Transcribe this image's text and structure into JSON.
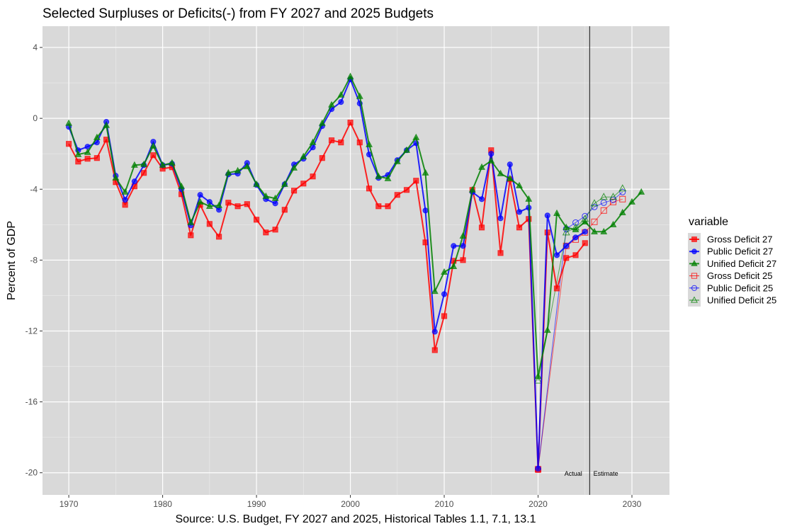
{
  "chart_data": {
    "type": "line",
    "title": "Selected Surpluses or Deficits(-) from FY 2027 and 2025 Budgets",
    "xlabel": "Source: U.S. Budget, FY 2027 and 2025, Historical Tables 1.1, 7.1, 13.1",
    "ylabel": "Percent of GDP",
    "xlim": [
      1967.2,
      2034
    ],
    "ylim": [
      -21.25,
      5.2
    ],
    "x_ticks": [
      1970,
      1980,
      1990,
      2000,
      2010,
      2020,
      2030
    ],
    "x_tick_labels": [
      "1970",
      "1980",
      "1990",
      "2000",
      "2010",
      "2020",
      "2030"
    ],
    "y_ticks": [
      4,
      0,
      -4,
      -8,
      -12,
      -16,
      -20
    ],
    "y_tick_labels": [
      "4",
      "0",
      "-4",
      "-8",
      "-12",
      "-16",
      "-20"
    ],
    "grid": true,
    "panel_background": "#d9d9d9",
    "legend": {
      "title": "variable",
      "position": "right"
    },
    "vline": {
      "x": 2025.5,
      "color": "#333333"
    },
    "annotations": [
      {
        "text": "Actual",
        "x": 2024.7,
        "y": -20.05,
        "anchor": "end"
      },
      {
        "text": "Estimate",
        "x": 2025.9,
        "y": -20.05,
        "anchor": "start"
      }
    ],
    "series": [
      {
        "name": "Gross Deficit 27",
        "color": "#ff0000",
        "shape": "square",
        "filled": true,
        "x": [
          1970,
          1971,
          1972,
          1973,
          1974,
          1975,
          1976,
          1977,
          1978,
          1979,
          1980,
          1981,
          1982,
          1983,
          1984,
          1985,
          1986,
          1987,
          1988,
          1989,
          1990,
          1991,
          1992,
          1993,
          1994,
          1995,
          1996,
          1997,
          1998,
          1999,
          2000,
          2001,
          2002,
          2003,
          2004,
          2005,
          2006,
          2007,
          2008,
          2009,
          2010,
          2011,
          2012,
          2013,
          2014,
          2015,
          2016,
          2017,
          2018,
          2019,
          2020,
          2021,
          2022,
          2023,
          2024,
          2025
        ],
        "values": [
          -1.44,
          -2.44,
          -2.28,
          -2.24,
          -1.2,
          -3.6,
          -4.88,
          -3.84,
          -3.08,
          -2.08,
          -2.84,
          -2.76,
          -4.28,
          -6.6,
          -4.88,
          -5.96,
          -6.68,
          -4.76,
          -4.96,
          -4.84,
          -5.72,
          -6.44,
          -6.28,
          -5.16,
          -4.08,
          -3.68,
          -3.28,
          -2.24,
          -1.24,
          -1.36,
          -0.24,
          -1.36,
          -3.96,
          -4.96,
          -4.96,
          -4.32,
          -4.04,
          -3.52,
          -7.0,
          -13.08,
          -11.16,
          -8.04,
          -8.0,
          -4.04,
          -6.16,
          -1.8,
          -7.6,
          -3.44,
          -6.16,
          -5.68,
          -19.84,
          -6.44,
          -9.6,
          -7.88,
          -7.72,
          -7.04
        ]
      },
      {
        "name": "Public Deficit 27",
        "color": "#0000ff",
        "shape": "circle",
        "filled": true,
        "x": [
          1970,
          1971,
          1972,
          1973,
          1974,
          1975,
          1976,
          1977,
          1978,
          1979,
          1980,
          1981,
          1982,
          1983,
          1984,
          1985,
          1986,
          1987,
          1988,
          1989,
          1990,
          1991,
          1992,
          1993,
          1994,
          1995,
          1996,
          1997,
          1998,
          1999,
          2000,
          2001,
          2002,
          2003,
          2004,
          2005,
          2006,
          2007,
          2008,
          2009,
          2010,
          2011,
          2012,
          2013,
          2014,
          2015,
          2016,
          2017,
          2018,
          2019,
          2020,
          2021,
          2022,
          2023,
          2024,
          2025
        ],
        "values": [
          -0.48,
          -1.8,
          -1.6,
          -1.36,
          -0.2,
          -3.24,
          -4.6,
          -3.56,
          -2.64,
          -1.32,
          -2.64,
          -2.56,
          -4.0,
          -6.04,
          -4.32,
          -4.72,
          -5.16,
          -3.16,
          -3.12,
          -2.52,
          -3.76,
          -4.56,
          -4.8,
          -3.72,
          -2.6,
          -2.28,
          -1.64,
          -0.44,
          0.52,
          0.92,
          2.2,
          0.84,
          -2.04,
          -3.36,
          -3.2,
          -2.36,
          -1.8,
          -1.4,
          -5.2,
          -12.04,
          -9.92,
          -7.2,
          -7.2,
          -4.16,
          -4.56,
          -2.0,
          -5.64,
          -2.6,
          -5.28,
          -5.04,
          -19.76,
          -5.48,
          -7.72,
          -7.2,
          -6.72,
          -6.4
        ]
      },
      {
        "name": "Unified Deficit 27",
        "color": "#008000",
        "shape": "triangle",
        "filled": true,
        "x": [
          1970,
          1971,
          1972,
          1973,
          1974,
          1975,
          1976,
          1977,
          1978,
          1979,
          1980,
          1981,
          1982,
          1983,
          1984,
          1985,
          1986,
          1987,
          1988,
          1989,
          1990,
          1991,
          1992,
          1993,
          1994,
          1995,
          1996,
          1997,
          1998,
          1999,
          2000,
          2001,
          2002,
          2003,
          2004,
          2005,
          2006,
          2007,
          2008,
          2009,
          2010,
          2011,
          2012,
          2013,
          2014,
          2015,
          2016,
          2017,
          2018,
          2019,
          2020,
          2021,
          2022,
          2023,
          2024,
          2025,
          2026,
          2027,
          2028,
          2029,
          2030,
          2031
        ],
        "values": [
          -0.28,
          -2.04,
          -1.92,
          -1.08,
          -0.4,
          -3.36,
          -4.16,
          -2.64,
          -2.6,
          -1.56,
          -2.64,
          -2.52,
          -3.84,
          -5.88,
          -4.72,
          -4.96,
          -4.92,
          -3.08,
          -2.96,
          -2.72,
          -3.72,
          -4.4,
          -4.52,
          -3.72,
          -2.8,
          -2.16,
          -1.36,
          -0.28,
          0.76,
          1.32,
          2.36,
          1.24,
          -1.48,
          -3.28,
          -3.4,
          -2.44,
          -1.8,
          -1.08,
          -3.08,
          -9.76,
          -8.68,
          -8.36,
          -6.64,
          -4.04,
          -2.76,
          -2.4,
          -3.12,
          -3.4,
          -3.8,
          -4.56,
          -14.56,
          -11.96,
          -5.36,
          -6.16,
          -6.28,
          -5.84,
          -6.4,
          -6.4,
          -6.0,
          -5.32,
          -4.72,
          -4.16
        ]
      },
      {
        "name": "Gross Deficit 25",
        "color": "#ff0000",
        "shape": "square",
        "filled": false,
        "x": [
          2020,
          2023,
          2024,
          2025,
          2026,
          2027,
          2028,
          2029
        ],
        "values": [
          -19.8,
          -7.2,
          -6.84,
          -6.44,
          -5.84,
          -5.2,
          -4.72,
          -4.56
        ]
      },
      {
        "name": "Public Deficit 25",
        "color": "#0000ff",
        "shape": "circle",
        "filled": false,
        "x": [
          2020,
          2023,
          2024,
          2025,
          2026,
          2027,
          2028,
          2029
        ],
        "values": [
          -19.8,
          -6.24,
          -5.88,
          -5.52,
          -5.0,
          -4.76,
          -4.6,
          -4.16
        ]
      },
      {
        "name": "Unified Deficit 25",
        "color": "#008000",
        "shape": "triangle",
        "filled": false,
        "x": [
          2020,
          2023,
          2024,
          2025,
          2026,
          2027,
          2028,
          2029
        ],
        "values": [
          -14.8,
          -6.44,
          -6.16,
          -5.68,
          -4.8,
          -4.44,
          -4.44,
          -3.96
        ]
      }
    ]
  }
}
